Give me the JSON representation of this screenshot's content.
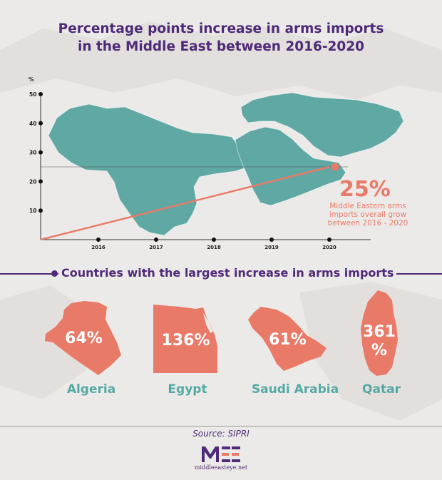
{
  "title_line1": "Percentage points increase in arms imports",
  "title_line2": "in the Middle East between 2016-2020",
  "colors": {
    "purple": "#4e2a78",
    "map_teal": "#5fa8a4",
    "salmon": "#ea7a68",
    "teal_text": "#55a9a3",
    "background": "#eceae8"
  },
  "chart_data": {
    "type": "line",
    "y_unit_label": "%",
    "y_ticks": [
      "10",
      "20",
      "30",
      "40",
      "50"
    ],
    "x_ticks": [
      "2016",
      "2017",
      "2018",
      "2019",
      "2020"
    ],
    "ylim": [
      0,
      50
    ],
    "grid": false,
    "series": [
      {
        "x": [
          2015,
          2020
        ],
        "y": [
          0,
          25
        ]
      }
    ],
    "reference_y": 25
  },
  "callout": {
    "value": "25%",
    "text_lines": [
      "Middle Eastern arms",
      "imports overall grow",
      "between 2016 - 2020"
    ]
  },
  "section_title": "Countries with the largest increase in arms imports",
  "countries": [
    {
      "name": "Algeria",
      "pct_line1": "64%",
      "pct_line2": "",
      "icon": "algeria-map-icon"
    },
    {
      "name": "Egypt",
      "pct_line1": "136%",
      "pct_line2": "",
      "icon": "egypt-map-icon"
    },
    {
      "name": "Saudi Arabia",
      "pct_line1": "61%",
      "pct_line2": "",
      "icon": "saudi-arabia-map-icon"
    },
    {
      "name": "Qatar",
      "pct_line1": "361",
      "pct_line2": "%",
      "icon": "qatar-map-icon"
    }
  ],
  "source": "Source: SIPRI",
  "logo": {
    "text": "MEE",
    "site": "middleeasteye.net"
  }
}
